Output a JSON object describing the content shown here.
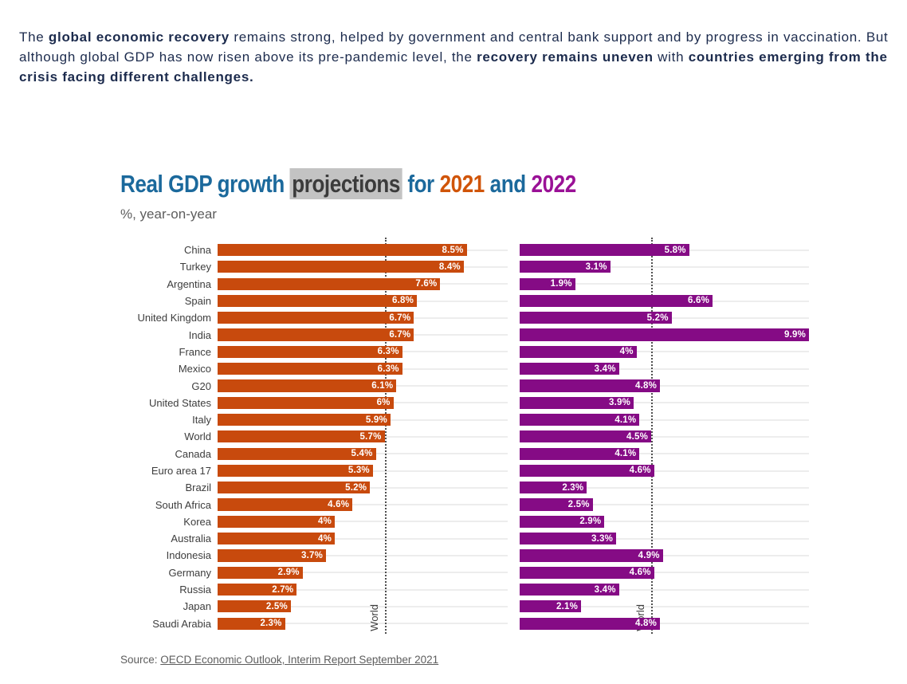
{
  "intro": {
    "lines": [
      [
        {
          "t": "The ",
          "b": false
        },
        {
          "t": "global economic recovery",
          "b": true
        },
        {
          "t": " remains strong, helped by government and central bank support and by progress in vaccination. But",
          "b": false
        }
      ],
      [
        {
          "t": "although global GDP has now risen above its pre-pandemic level, the ",
          "b": false
        },
        {
          "t": "recovery remains uneven",
          "b": true
        },
        {
          "t": " with ",
          "b": false
        },
        {
          "t": "countries emerging from the",
          "b": true
        }
      ],
      [
        {
          "t": "crisis facing different challenges.",
          "b": true
        }
      ]
    ]
  },
  "title": {
    "parts": [
      {
        "text": "Real GDP growth ",
        "color": "#1b699c",
        "highlight": false
      },
      {
        "text": "projections",
        "color": "#3b3b3b",
        "highlight": true
      },
      {
        "text": " for ",
        "color": "#1b699c",
        "highlight": false
      },
      {
        "text": "2021",
        "color": "#d05408",
        "highlight": false
      },
      {
        "text": " and ",
        "color": "#1b699c",
        "highlight": false
      },
      {
        "text": "2022",
        "color": "#9a1196",
        "highlight": false
      }
    ]
  },
  "chart_data": {
    "type": "bar",
    "orientation": "horizontal",
    "title": "Real GDP growth projections for 2021 and 2022",
    "subtitle": "%, year-on-year",
    "unit": "%",
    "xmax": 9.9,
    "grid": true,
    "legend_position": "none",
    "categories": [
      "China",
      "Turkey",
      "Argentina",
      "Spain",
      "United Kingdom",
      "India",
      "France",
      "Mexico",
      "G20",
      "United States",
      "Italy",
      "World",
      "Canada",
      "Euro area 17",
      "Brazil",
      "South Africa",
      "Korea",
      "Australia",
      "Indonesia",
      "Germany",
      "Russia",
      "Japan",
      "Saudi Arabia"
    ],
    "series": [
      {
        "name": "2021",
        "color": "#c84a0d",
        "values": [
          8.5,
          8.4,
          7.6,
          6.8,
          6.7,
          6.7,
          6.3,
          6.3,
          6.1,
          6,
          5.9,
          5.7,
          5.4,
          5.3,
          5.2,
          4.6,
          4,
          4,
          3.7,
          2.9,
          2.7,
          2.5,
          2.3
        ]
      },
      {
        "name": "2022",
        "color": "#850b85",
        "values": [
          5.8,
          3.1,
          1.9,
          6.6,
          5.2,
          9.9,
          4,
          3.4,
          4.8,
          3.9,
          4.1,
          4.5,
          4.1,
          4.6,
          2.3,
          2.5,
          2.9,
          3.3,
          4.9,
          4.6,
          3.4,
          2.1,
          4.8
        ]
      }
    ],
    "reference_lines": [
      {
        "series": "2021",
        "label": "World",
        "value": 5.7
      },
      {
        "series": "2022",
        "label": "World",
        "value": 4.5
      }
    ]
  },
  "source": {
    "prefix": "Source: ",
    "link_text": "OECD Economic Outlook, Interim Report September 2021"
  },
  "colors": {
    "intro_text": "#1c2b4d",
    "title_blue": "#1b699c",
    "title_orange": "#d05408",
    "title_purple": "#9a1196",
    "highlight_bg": "#c3c3c3",
    "bar_2021": "#c84a0d",
    "bar_2022": "#850b85",
    "gridline": "#ededed",
    "reference_line": "#4f4f4f",
    "muted_text": "#5d5d5d"
  }
}
